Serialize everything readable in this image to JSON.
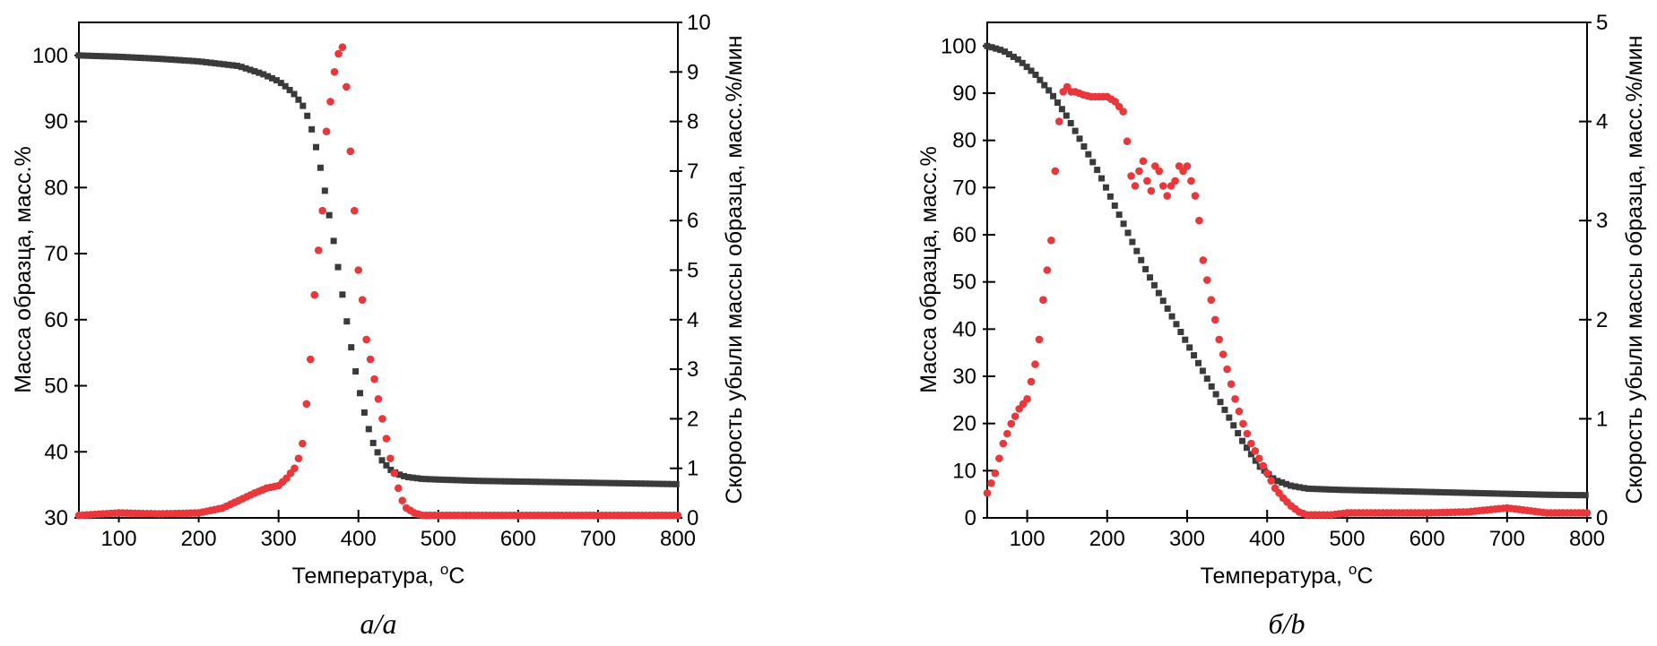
{
  "chart_data": [
    {
      "type": "scatter",
      "panel_label": "а/a",
      "xlabel": "Температура, ",
      "xunit_sup": "o",
      "xunit": "C",
      "ylabel": "Масса образца, масс.%",
      "y2label": "Скорость убыли массы образца, масс.%/мин",
      "xlim": [
        50,
        800
      ],
      "ylim": [
        30,
        105
      ],
      "y2lim": [
        0,
        10
      ],
      "xticks": [
        100,
        200,
        300,
        400,
        500,
        600,
        700,
        800
      ],
      "yticks": [
        30,
        40,
        50,
        60,
        70,
        80,
        90,
        100
      ],
      "y2ticks": [
        0,
        1,
        2,
        3,
        4,
        5,
        6,
        7,
        8,
        9,
        10
      ],
      "colors": {
        "mass": "#3a3a3a",
        "rate": "#e8383b"
      },
      "series": [
        {
          "name": "mass",
          "axis": "left",
          "marker": "square",
          "x": [
            50,
            100,
            150,
            200,
            250,
            280,
            300,
            310,
            320,
            330,
            335,
            340,
            345,
            350,
            355,
            360,
            365,
            370,
            375,
            380,
            385,
            390,
            395,
            400,
            405,
            410,
            415,
            420,
            430,
            440,
            450,
            460,
            480,
            500,
            550,
            600,
            650,
            700,
            750,
            800
          ],
          "y": [
            100,
            99.8,
            99.5,
            99.1,
            98.4,
            97.2,
            96.1,
            95.2,
            94.1,
            92.5,
            91.2,
            89.5,
            87.2,
            84.5,
            81.5,
            78.2,
            74.8,
            71.2,
            67.6,
            63.8,
            60.1,
            56.5,
            53.1,
            50,
            47.2,
            44.7,
            42.6,
            40.8,
            38.6,
            37.3,
            36.6,
            36.2,
            35.9,
            35.8,
            35.6,
            35.5,
            35.4,
            35.3,
            35.2,
            35.1
          ]
        },
        {
          "name": "rate",
          "axis": "right",
          "marker": "circle",
          "x": [
            50,
            100,
            150,
            200,
            230,
            250,
            270,
            285,
            300,
            310,
            320,
            325,
            330,
            335,
            340,
            345,
            350,
            355,
            360,
            365,
            370,
            373,
            376,
            380,
            385,
            390,
            395,
            400,
            405,
            410,
            415,
            420,
            425,
            430,
            435,
            440,
            445,
            450,
            455,
            460,
            470,
            480,
            500,
            550,
            600,
            650,
            700,
            750,
            800
          ],
          "y": [
            0.05,
            0.1,
            0.08,
            0.1,
            0.2,
            0.35,
            0.5,
            0.6,
            0.65,
            0.8,
            1.0,
            1.2,
            1.5,
            2.3,
            3.2,
            4.5,
            5.4,
            6.2,
            7.8,
            8.4,
            9.0,
            9.5,
            9.3,
            9.5,
            8.7,
            7.4,
            6.2,
            5.0,
            4.4,
            3.6,
            3.2,
            2.8,
            2.4,
            2.0,
            1.6,
            1.2,
            0.9,
            0.6,
            0.35,
            0.2,
            0.1,
            0.05,
            0.05,
            0.05,
            0.05,
            0.05,
            0.05,
            0.05,
            0.05
          ]
        }
      ]
    },
    {
      "type": "scatter",
      "panel_label": "б/b",
      "xlabel": "Температура, ",
      "xunit_sup": "o",
      "xunit": "C",
      "ylabel": "Масса образца, масс.%",
      "y2label": "Скорость убыли массы образца, масс.%/мин",
      "xlim": [
        50,
        800
      ],
      "ylim": [
        0,
        105
      ],
      "y2lim": [
        0,
        5
      ],
      "xticks": [
        100,
        200,
        300,
        400,
        500,
        600,
        700,
        800
      ],
      "yticks": [
        0,
        10,
        20,
        30,
        40,
        50,
        60,
        70,
        80,
        90,
        100
      ],
      "y2ticks": [
        0,
        1,
        2,
        3,
        4,
        5
      ],
      "colors": {
        "mass": "#3a3a3a",
        "rate": "#e8383b"
      },
      "series": [
        {
          "name": "mass",
          "axis": "left",
          "marker": "square",
          "x": [
            50,
            70,
            90,
            110,
            130,
            150,
            170,
            190,
            210,
            230,
            250,
            270,
            290,
            310,
            330,
            350,
            370,
            390,
            410,
            430,
            450,
            480,
            500,
            550,
            600,
            650,
            700,
            750,
            800
          ],
          "y": [
            100,
            99,
            97,
            94,
            90,
            85,
            79,
            73,
            66,
            59,
            52,
            46,
            40,
            34,
            28,
            22,
            16,
            11,
            8,
            6.8,
            6.2,
            6.0,
            5.9,
            5.7,
            5.5,
            5.3,
            5.1,
            4.9,
            4.8
          ]
        },
        {
          "name": "rate",
          "axis": "right",
          "marker": "circle",
          "x": [
            50,
            60,
            70,
            80,
            90,
            100,
            110,
            115,
            120,
            125,
            130,
            135,
            140,
            145,
            150,
            155,
            160,
            170,
            180,
            190,
            200,
            210,
            220,
            225,
            230,
            235,
            240,
            245,
            250,
            255,
            260,
            265,
            270,
            275,
            280,
            285,
            290,
            295,
            300,
            305,
            310,
            315,
            320,
            330,
            340,
            350,
            360,
            370,
            380,
            390,
            400,
            410,
            420,
            430,
            440,
            450,
            460,
            480,
            500,
            550,
            600,
            650,
            700,
            750,
            800
          ],
          "y": [
            0.25,
            0.45,
            0.75,
            0.95,
            1.1,
            1.2,
            1.55,
            1.8,
            2.2,
            2.5,
            2.8,
            3.5,
            4.0,
            4.3,
            4.35,
            4.3,
            4.3,
            4.27,
            4.25,
            4.25,
            4.25,
            4.2,
            4.1,
            3.8,
            3.45,
            3.35,
            3.5,
            3.6,
            3.4,
            3.3,
            3.55,
            3.5,
            3.35,
            3.25,
            3.35,
            3.4,
            3.55,
            3.5,
            3.55,
            3.4,
            3.25,
            3.0,
            2.6,
            2.2,
            1.8,
            1.5,
            1.2,
            0.95,
            0.75,
            0.6,
            0.45,
            0.3,
            0.2,
            0.12,
            0.06,
            0.03,
            0.03,
            0.03,
            0.05,
            0.05,
            0.05,
            0.06,
            0.1,
            0.05,
            0.05
          ]
        }
      ]
    }
  ]
}
